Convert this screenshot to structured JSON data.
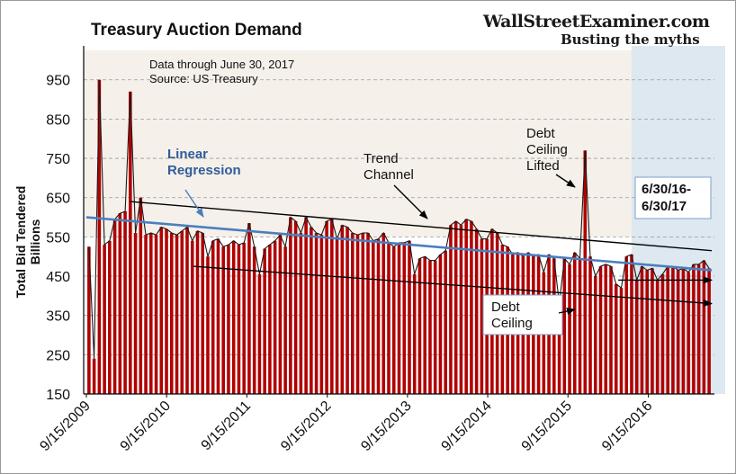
{
  "chart_data": {
    "type": "bar",
    "title": "Treasury Auction Demand",
    "ylabel": "Total Bid Tendered\nBillions",
    "xlabel": "",
    "ylim": [
      150,
      1025
    ],
    "y_ticks": [
      150,
      250,
      350,
      450,
      550,
      650,
      750,
      850,
      950
    ],
    "x_tick_labels": [
      "9/15/2009",
      "9/15/2010",
      "9/15/2011",
      "9/15/2012",
      "9/15/2013",
      "9/15/2014",
      "9/15/2015",
      "9/15/2016"
    ],
    "x_range": [
      "2009-09-15",
      "2017-06-30"
    ],
    "grid": "dashed horizontal",
    "source_note": [
      "Data through June 30, 2017",
      "Source: US Treasury"
    ],
    "brand": {
      "name": "WallStreetExaminer.com",
      "tagline": "Busting the myths"
    },
    "colors": {
      "bar": "#b00000",
      "line": "#000000",
      "regression": "#4a7ebf",
      "shade": "#dde8f0",
      "band": "#f5f0ea"
    },
    "annotations": {
      "regression": "Linear\nRegression",
      "trend_channel": "Trend\nChannel",
      "debt_ceiling_lifted": "Debt\nCeiling\nLifted",
      "debt_ceiling": "Debt\nCeiling",
      "period": "6/30/16-\n6/30/17"
    },
    "highlight_range": [
      "2016-06-30",
      "2017-06-30"
    ],
    "series": [
      {
        "values": [
          525,
          240,
          950,
          530,
          540,
          595,
          610,
          615,
          920,
          560,
          650,
          555,
          560,
          555,
          575,
          570,
          560,
          555,
          565,
          575,
          540,
          565,
          560,
          500,
          540,
          545,
          525,
          530,
          540,
          530,
          535,
          585,
          525,
          455,
          520,
          530,
          540,
          555,
          525,
          600,
          590,
          560,
          600,
          575,
          560,
          555,
          590,
          595,
          545,
          580,
          575,
          560,
          555,
          560,
          560,
          540,
          545,
          560,
          535,
          525,
          535,
          535,
          540,
          455,
          495,
          500,
          490,
          490,
          505,
          515,
          580,
          590,
          580,
          595,
          590,
          570,
          545,
          545,
          570,
          560,
          530,
          525,
          505,
          510,
          500,
          510,
          500,
          505,
          460,
          505,
          495,
          380,
          495,
          480,
          510,
          495,
          770,
          500,
          450,
          475,
          480,
          475,
          430,
          420,
          500,
          505,
          440,
          475,
          465,
          470,
          440,
          455,
          475,
          475,
          465,
          470,
          460,
          480,
          480,
          490,
          470
        ]
      }
    ],
    "regression_line": {
      "start": [
        "2009-09-15",
        600
      ],
      "end": [
        "2017-06-30",
        465
      ]
    },
    "trend_upper": {
      "start": [
        "2010-04-01",
        640
      ],
      "end": [
        "2017-06-30",
        515
      ]
    },
    "trend_lower": {
      "start": [
        "2011-01-15",
        475
      ],
      "end": [
        "2017-06-30",
        380
      ]
    },
    "short_arrow": {
      "start": [
        "2016-05-01",
        440
      ],
      "end": [
        "2017-06-30",
        440
      ]
    }
  }
}
